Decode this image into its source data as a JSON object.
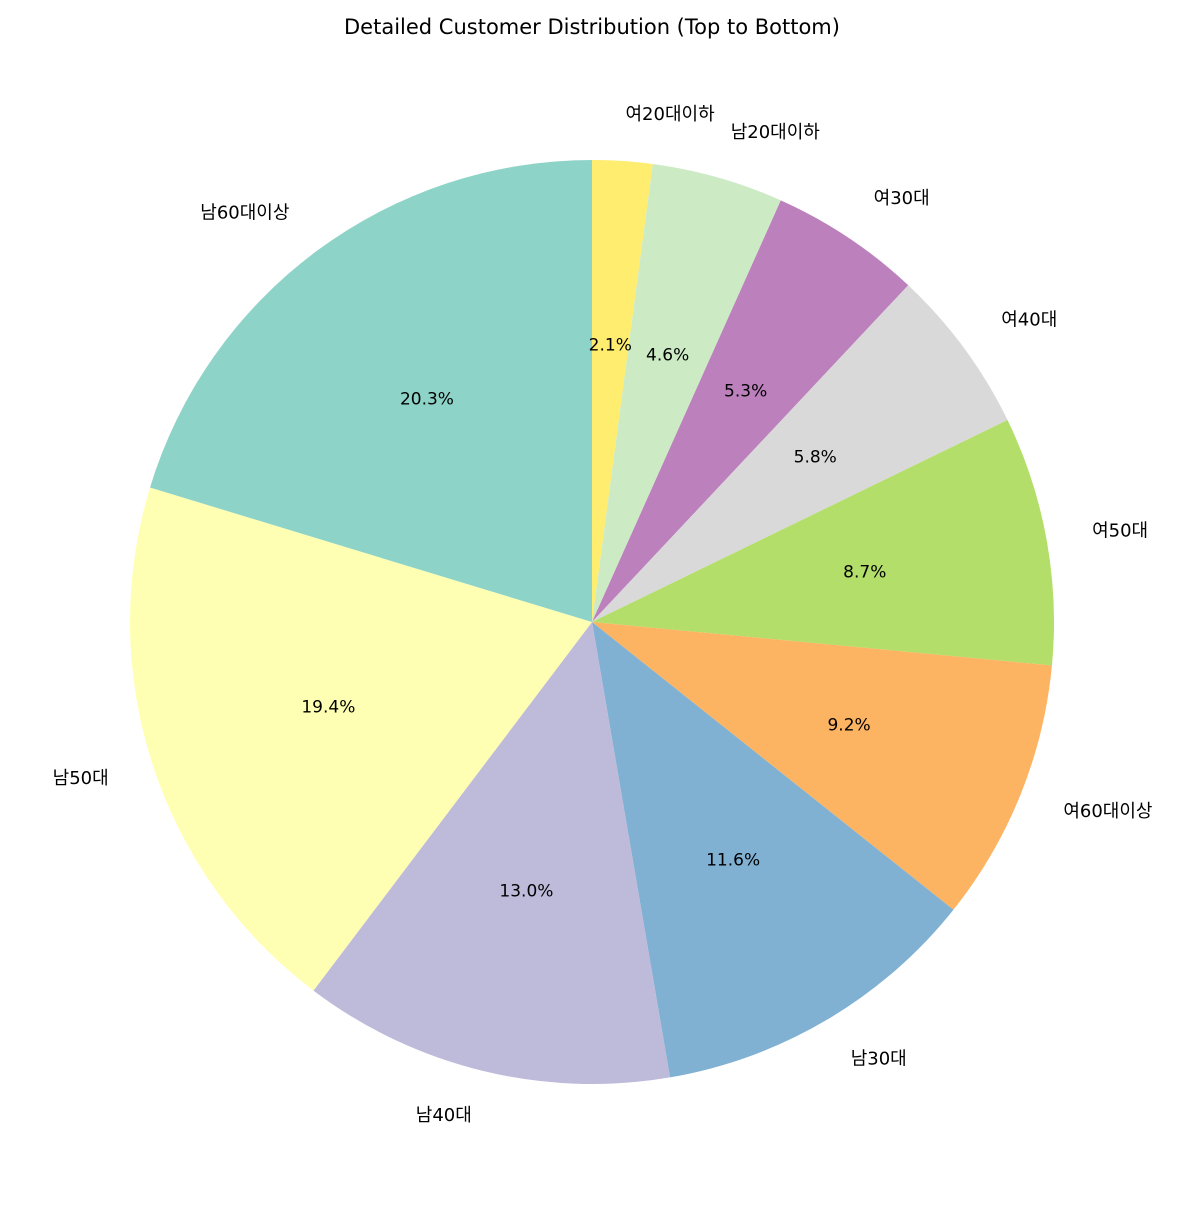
{
  "chart_data": {
    "type": "pie",
    "title": "Detailed Customer Distribution (Top to Bottom)",
    "start_angle_deg": 90,
    "direction": "clockwise",
    "slices": [
      {
        "label": "여20대이하",
        "value": 2.1,
        "pct_label": "2.1%",
        "color": "#ffed6f"
      },
      {
        "label": "남20대이하",
        "value": 4.6,
        "pct_label": "4.6%",
        "color": "#ccebc5"
      },
      {
        "label": "여30대",
        "value": 5.3,
        "pct_label": "5.3%",
        "color": "#bc80bd"
      },
      {
        "label": "여40대",
        "value": 5.8,
        "pct_label": "5.8%",
        "color": "#d9d9d9"
      },
      {
        "label": "여50대",
        "value": 8.7,
        "pct_label": "8.7%",
        "color": "#b3de69"
      },
      {
        "label": "여60대이상",
        "value": 9.2,
        "pct_label": "9.2%",
        "color": "#fdb462"
      },
      {
        "label": "남30대",
        "value": 11.6,
        "pct_label": "11.6%",
        "color": "#80b1d3"
      },
      {
        "label": "남40대",
        "value": 13.0,
        "pct_label": "13.0%",
        "color": "#bebada"
      },
      {
        "label": "남50대",
        "value": 19.4,
        "pct_label": "19.4%",
        "color": "#ffffb3"
      },
      {
        "label": "남60대이상",
        "value": 20.3,
        "pct_label": "20.3%",
        "color": "#8dd3c7"
      }
    ]
  }
}
